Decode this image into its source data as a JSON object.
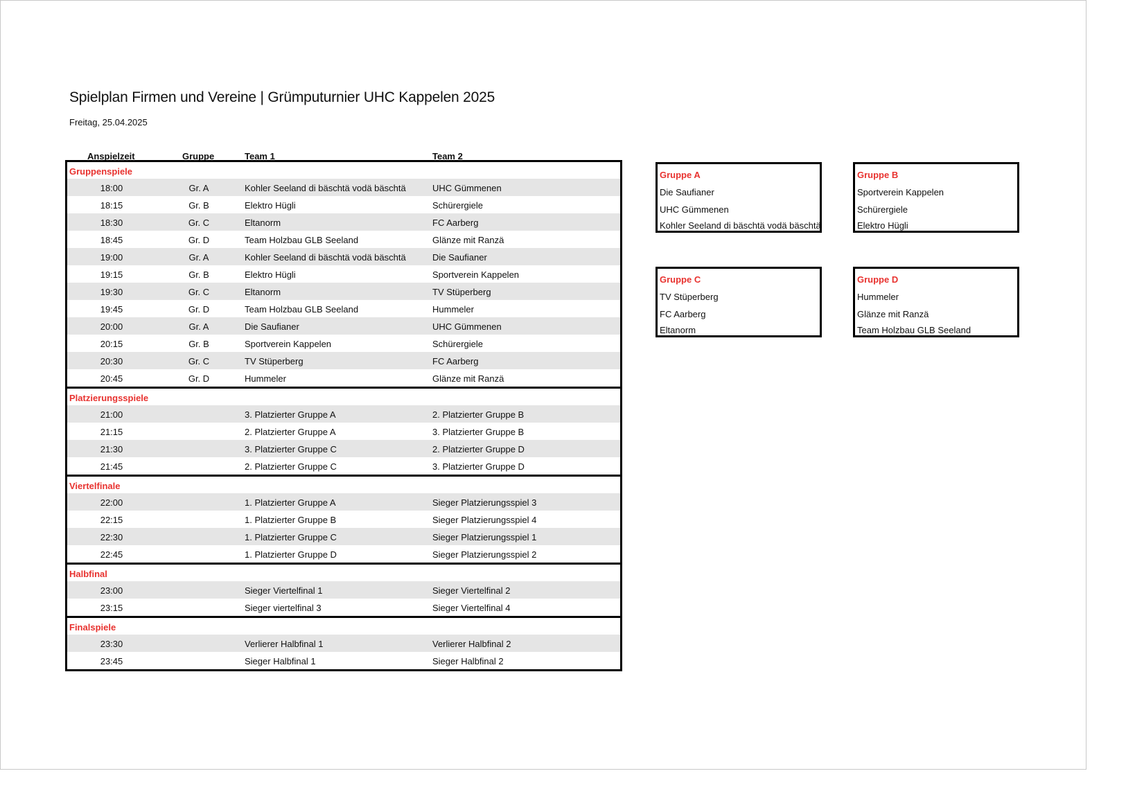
{
  "title": "Spielplan Firmen und Vereine | Grümputurnier UHC Kappelen 2025",
  "date": "Freitag, 25.04.2025",
  "columns": {
    "time": "Anspielzeit",
    "group": "Gruppe",
    "team1": "Team 1",
    "team2": "Team 2"
  },
  "colors": {
    "accent_red": "#e8322f",
    "row_shade": "#e5e5e5"
  },
  "sections": [
    {
      "title": "Gruppenspiele",
      "rows": [
        {
          "time": "18:00",
          "group": "Gr. A",
          "team1": "Kohler Seeland di bäschtä vodä bäschtä",
          "team2": "UHC Gümmenen"
        },
        {
          "time": "18:15",
          "group": "Gr. B",
          "team1": "Elektro Hügli",
          "team2": "Schürergiele"
        },
        {
          "time": "18:30",
          "group": "Gr. C",
          "team1": "Eltanorm",
          "team2": "FC Aarberg"
        },
        {
          "time": "18:45",
          "group": "Gr. D",
          "team1": "Team Holzbau GLB Seeland",
          "team2": "Glänze mit Ranzä"
        },
        {
          "time": "19:00",
          "group": "Gr. A",
          "team1": "Kohler Seeland di bäschtä vodä bäschtä",
          "team2": "Die Saufianer"
        },
        {
          "time": "19:15",
          "group": "Gr. B",
          "team1": "Elektro Hügli",
          "team2": "Sportverein Kappelen"
        },
        {
          "time": "19:30",
          "group": "Gr. C",
          "team1": "Eltanorm",
          "team2": "TV Stüperberg"
        },
        {
          "time": "19:45",
          "group": "Gr. D",
          "team1": "Team Holzbau GLB Seeland",
          "team2": "Hummeler"
        },
        {
          "time": "20:00",
          "group": "Gr. A",
          "team1": "Die Saufianer",
          "team2": "UHC Gümmenen"
        },
        {
          "time": "20:15",
          "group": "Gr. B",
          "team1": "Sportverein Kappelen",
          "team2": "Schürergiele"
        },
        {
          "time": "20:30",
          "group": "Gr. C",
          "team1": "TV Stüperberg",
          "team2": "FC Aarberg"
        },
        {
          "time": "20:45",
          "group": "Gr. D",
          "team1": "Hummeler",
          "team2": "Glänze mit Ranzä"
        }
      ]
    },
    {
      "title": "Platzierungsspiele",
      "rows": [
        {
          "time": "21:00",
          "group": "",
          "team1": "3. Platzierter Gruppe A",
          "team2": "2. Platzierter Gruppe B"
        },
        {
          "time": "21:15",
          "group": "",
          "team1": "2. Platzierter Gruppe A",
          "team2": "3. Platzierter Gruppe B"
        },
        {
          "time": "21:30",
          "group": "",
          "team1": "3. Platzierter Gruppe C",
          "team2": "2. Platzierter Gruppe D"
        },
        {
          "time": "21:45",
          "group": "",
          "team1": "2. Platzierter Gruppe C",
          "team2": "3. Platzierter Gruppe D"
        }
      ]
    },
    {
      "title": "Viertelfinale",
      "rows": [
        {
          "time": "22:00",
          "group": "",
          "team1": "1. Platzierter Gruppe A",
          "team2": "Sieger Platzierungsspiel 3"
        },
        {
          "time": "22:15",
          "group": "",
          "team1": "1. Platzierter Gruppe B",
          "team2": "Sieger Platzierungsspiel 4"
        },
        {
          "time": "22:30",
          "group": "",
          "team1": "1. Platzierter Gruppe C",
          "team2": "Sieger Platzierungsspiel 1"
        },
        {
          "time": "22:45",
          "group": "",
          "team1": "1. Platzierter Gruppe D",
          "team2": "Sieger Platzierungsspiel 2"
        }
      ]
    },
    {
      "title": "Halbfinal",
      "rows": [
        {
          "time": "23:00",
          "group": "",
          "team1": "Sieger Viertelfinal 1",
          "team2": "Sieger Viertelfinal 2"
        },
        {
          "time": "23:15",
          "group": "",
          "team1": "Sieger viertelfinal 3",
          "team2": "Sieger Viertelfinal 4"
        }
      ]
    },
    {
      "title": "Finalspiele",
      "rows": [
        {
          "time": "23:30",
          "group": "",
          "team1": "Verlierer Halbfinal 1",
          "team2": "Verlierer Halbfinal 2"
        },
        {
          "time": "23:45",
          "group": "",
          "team1": "Sieger Halbfinal 1",
          "team2": "Sieger Halbfinal 2"
        }
      ]
    }
  ],
  "groups": [
    {
      "title": "Gruppe A",
      "teams": [
        "Die Saufianer",
        "UHC Gümmenen",
        "Kohler Seeland di bäschtä vodä bäschtä"
      ]
    },
    {
      "title": "Gruppe B",
      "teams": [
        "Sportverein Kappelen",
        "Schürergiele",
        "Elektro Hügli"
      ]
    },
    {
      "title": "Gruppe C",
      "teams": [
        "TV Stüperberg",
        "FC Aarberg",
        "Eltanorm"
      ]
    },
    {
      "title": "Gruppe D",
      "teams": [
        "Hummeler",
        "Glänze mit Ranzä",
        "Team Holzbau GLB Seeland"
      ]
    }
  ]
}
